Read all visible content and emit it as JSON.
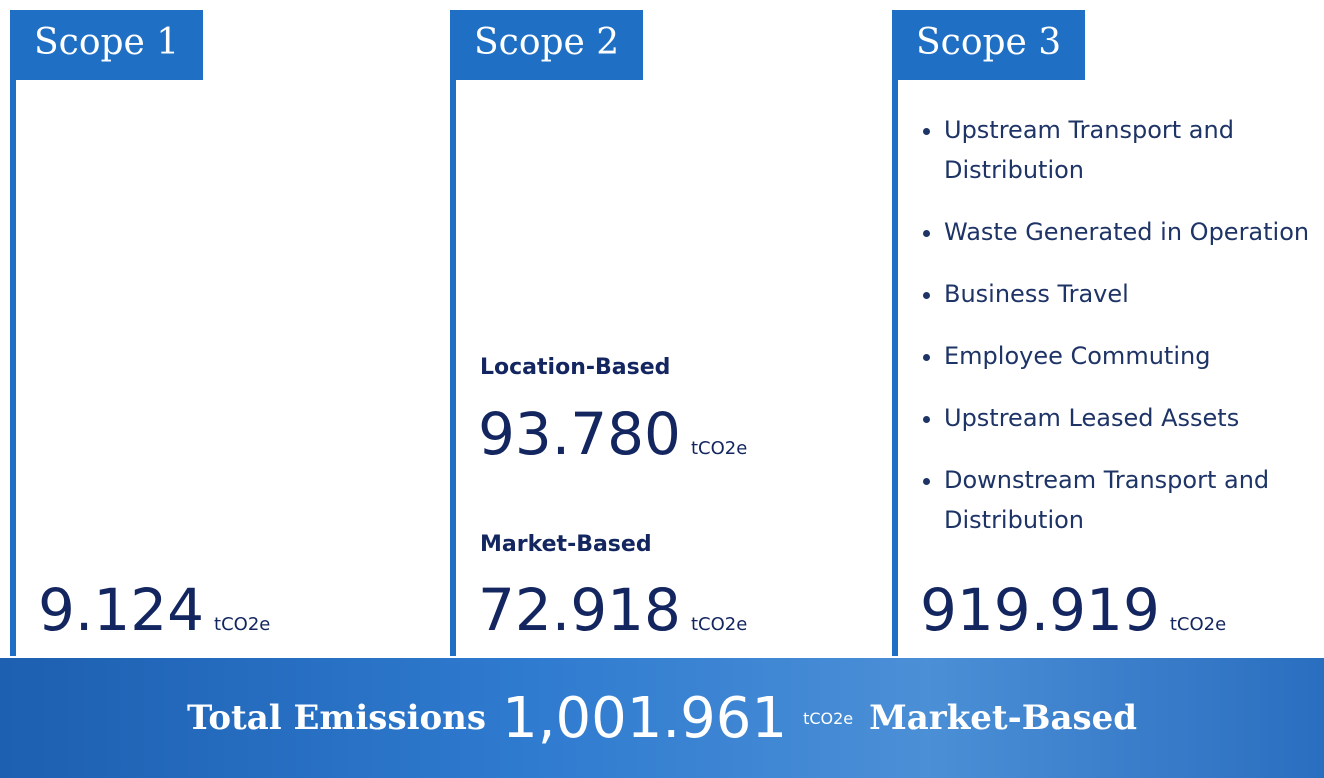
{
  "scopes": [
    {
      "title": "Scope 1",
      "values": [
        {
          "value": "9.124",
          "unit": "tCO2e"
        }
      ]
    },
    {
      "title": "Scope 2",
      "values": [
        {
          "label": "Location-Based",
          "value": "93.780",
          "unit": "tCO2e"
        },
        {
          "label": "Market-Based",
          "value": "72.918",
          "unit": "tCO2e"
        }
      ]
    },
    {
      "title": "Scope 3",
      "items": [
        "Upstream Transport and Distribution",
        "Waste Generated in Operation",
        "Business Travel",
        "Employee Commuting",
        "Upstream Leased Assets",
        "Downstream Transport and Distribution"
      ],
      "values": [
        {
          "value": "919.919",
          "unit": "tCO2e"
        }
      ]
    }
  ],
  "total": {
    "label": "Total Emissions",
    "value": "1,001.961",
    "unit": "tCO2e",
    "basis": "Market-Based"
  }
}
